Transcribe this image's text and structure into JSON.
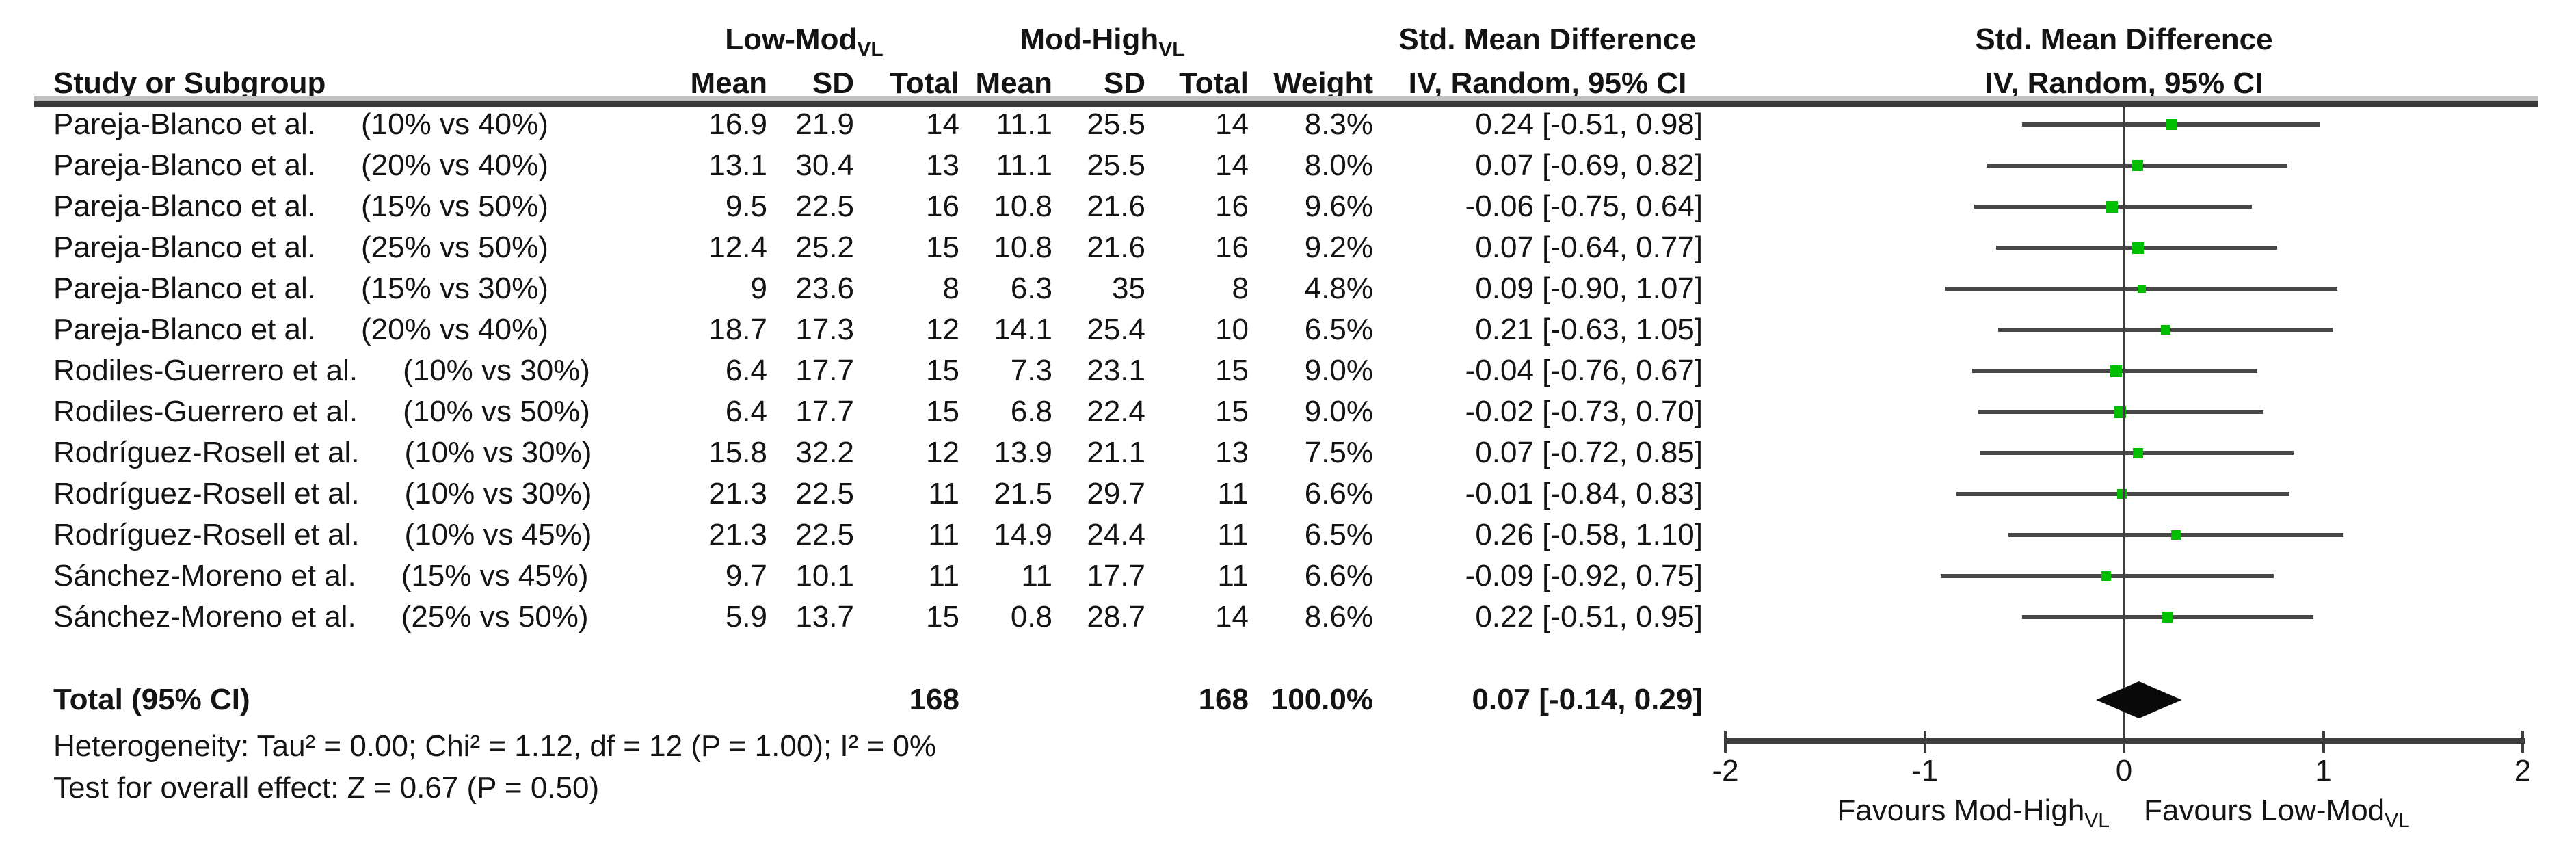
{
  "header": {
    "study_col": "Study or Subgroup",
    "group1": "Low-Mod",
    "group1_sub": "VL",
    "group2": "Mod-High",
    "group2_sub": "VL",
    "mean": "Mean",
    "sd": "SD",
    "total": "Total",
    "weight": "Weight",
    "smd_line1": "Std. Mean Difference",
    "smd_line2": "IV, Random, 95% CI",
    "plot_line1": "Std. Mean Difference",
    "plot_line2": "IV, Random, 95% CI"
  },
  "total_row": {
    "label": "Total (95% CI)",
    "n1": "168",
    "n2": "168",
    "weight": "100.0%",
    "ci": "0.07 [-0.14, 0.29]"
  },
  "footer": {
    "heterogeneity": "Heterogeneity: Tau² = 0.00; Chi² = 1.12, df = 12 (P = 1.00); I² = 0%",
    "overall_effect": "Test for overall effect: Z = 0.67 (P = 0.50)"
  },
  "colors": {
    "square_green": "#00bf00",
    "ci_line": "#474747",
    "diamond": "#0a0a0a",
    "axis_line": "#3d3d3d",
    "rule_dark": "#3a3a3a",
    "rule_light": "#c0c0c0",
    "text": "#141414"
  },
  "chart_data": {
    "type": "forest",
    "title": "Std. Mean Difference",
    "method": "IV, Random, 95% CI",
    "axis": {
      "min": -2,
      "max": 2,
      "ticks": [
        -2,
        -1,
        0,
        1,
        2
      ],
      "favours_left": "Favours Mod-High",
      "favours_left_sub": "VL",
      "favours_right": "Favours Low-Mod",
      "favours_right_sub": "VL"
    },
    "studies": [
      {
        "study": "Pareja-Blanco et al.",
        "comparison": "(10% vs 40%)",
        "mean1": "16.9",
        "sd1": "21.9",
        "n1": "14",
        "mean2": "11.1",
        "sd2": "25.5",
        "n2": "14",
        "weight": "8.3%",
        "weight_value": 8.3,
        "ci_label": "0.24 [-0.51, 0.98]",
        "est": 0.24,
        "lo": -0.51,
        "hi": 0.98
      },
      {
        "study": "Pareja-Blanco et al.",
        "comparison": "(20% vs 40%)",
        "mean1": "13.1",
        "sd1": "30.4",
        "n1": "13",
        "mean2": "11.1",
        "sd2": "25.5",
        "n2": "14",
        "weight": "8.0%",
        "weight_value": 8.0,
        "ci_label": "0.07 [-0.69, 0.82]",
        "est": 0.07,
        "lo": -0.69,
        "hi": 0.82
      },
      {
        "study": "Pareja-Blanco et al.",
        "comparison": "(15% vs 50%)",
        "mean1": "9.5",
        "sd1": "22.5",
        "n1": "16",
        "mean2": "10.8",
        "sd2": "21.6",
        "n2": "16",
        "weight": "9.6%",
        "weight_value": 9.6,
        "ci_label": "-0.06 [-0.75, 0.64]",
        "est": -0.06,
        "lo": -0.75,
        "hi": 0.64
      },
      {
        "study": "Pareja-Blanco et al.",
        "comparison": "(25% vs 50%)",
        "mean1": "12.4",
        "sd1": "25.2",
        "n1": "15",
        "mean2": "10.8",
        "sd2": "21.6",
        "n2": "16",
        "weight": "9.2%",
        "weight_value": 9.2,
        "ci_label": "0.07 [-0.64, 0.77]",
        "est": 0.07,
        "lo": -0.64,
        "hi": 0.77
      },
      {
        "study": "Pareja-Blanco et al.",
        "comparison": "(15% vs 30%)",
        "mean1": "9",
        "sd1": "23.6",
        "n1": "8",
        "mean2": "6.3",
        "sd2": "35",
        "n2": "8",
        "weight": "4.8%",
        "weight_value": 4.8,
        "ci_label": "0.09 [-0.90, 1.07]",
        "est": 0.09,
        "lo": -0.9,
        "hi": 1.07
      },
      {
        "study": "Pareja-Blanco et al.",
        "comparison": "(20% vs 40%)",
        "mean1": "18.7",
        "sd1": "17.3",
        "n1": "12",
        "mean2": "14.1",
        "sd2": "25.4",
        "n2": "10",
        "weight": "6.5%",
        "weight_value": 6.5,
        "ci_label": "0.21 [-0.63, 1.05]",
        "est": 0.21,
        "lo": -0.63,
        "hi": 1.05
      },
      {
        "study": "Rodiles-Guerrero et al.",
        "comparison": "(10% vs 30%)",
        "mean1": "6.4",
        "sd1": "17.7",
        "n1": "15",
        "mean2": "7.3",
        "sd2": "23.1",
        "n2": "15",
        "weight": "9.0%",
        "weight_value": 9.0,
        "ci_label": "-0.04 [-0.76, 0.67]",
        "est": -0.04,
        "lo": -0.76,
        "hi": 0.67
      },
      {
        "study": "Rodiles-Guerrero et al.",
        "comparison": "(10% vs 50%)",
        "mean1": "6.4",
        "sd1": "17.7",
        "n1": "15",
        "mean2": "6.8",
        "sd2": "22.4",
        "n2": "15",
        "weight": "9.0%",
        "weight_value": 9.0,
        "ci_label": "-0.02 [-0.73, 0.70]",
        "est": -0.02,
        "lo": -0.73,
        "hi": 0.7
      },
      {
        "study": "Rodríguez-Rosell et al.",
        "comparison": "(10% vs 30%)",
        "mean1": "15.8",
        "sd1": "32.2",
        "n1": "12",
        "mean2": "13.9",
        "sd2": "21.1",
        "n2": "13",
        "weight": "7.5%",
        "weight_value": 7.5,
        "ci_label": "0.07 [-0.72, 0.85]",
        "est": 0.07,
        "lo": -0.72,
        "hi": 0.85
      },
      {
        "study": "Rodríguez-Rosell et al.",
        "comparison": "(10% vs 30%)",
        "mean1": "21.3",
        "sd1": "22.5",
        "n1": "11",
        "mean2": "21.5",
        "sd2": "29.7",
        "n2": "11",
        "weight": "6.6%",
        "weight_value": 6.6,
        "ci_label": "-0.01 [-0.84, 0.83]",
        "est": -0.01,
        "lo": -0.84,
        "hi": 0.83
      },
      {
        "study": "Rodríguez-Rosell et al.",
        "comparison": "(10% vs 45%)",
        "mean1": "21.3",
        "sd1": "22.5",
        "n1": "11",
        "mean2": "14.9",
        "sd2": "24.4",
        "n2": "11",
        "weight": "6.5%",
        "weight_value": 6.5,
        "ci_label": "0.26 [-0.58, 1.10]",
        "est": 0.26,
        "lo": -0.58,
        "hi": 1.1
      },
      {
        "study": "Sánchez-Moreno et al.",
        "comparison": "(15% vs 45%)",
        "mean1": "9.7",
        "sd1": "10.1",
        "n1": "11",
        "mean2": "11",
        "sd2": "17.7",
        "n2": "11",
        "weight": "6.6%",
        "weight_value": 6.6,
        "ci_label": "-0.09 [-0.92, 0.75]",
        "est": -0.09,
        "lo": -0.92,
        "hi": 0.75
      },
      {
        "study": "Sánchez-Moreno et al.",
        "comparison": "(25% vs 50%)",
        "mean1": "5.9",
        "sd1": "13.7",
        "n1": "15",
        "mean2": "0.8",
        "sd2": "28.7",
        "n2": "14",
        "weight": "8.6%",
        "weight_value": 8.6,
        "ci_label": "0.22 [-0.51, 0.95]",
        "est": 0.22,
        "lo": -0.51,
        "hi": 0.95
      }
    ],
    "total": {
      "label": "Total (95% CI)",
      "n1": 168,
      "n2": 168,
      "weight": "100.0%",
      "est": 0.07,
      "lo": -0.14,
      "hi": 0.29
    },
    "heterogeneity": {
      "tau2": 0.0,
      "chi2": 1.12,
      "df": 12,
      "p": 1.0,
      "i2": "0%"
    },
    "overall_effect": {
      "z": 0.67,
      "p": 0.5
    }
  }
}
